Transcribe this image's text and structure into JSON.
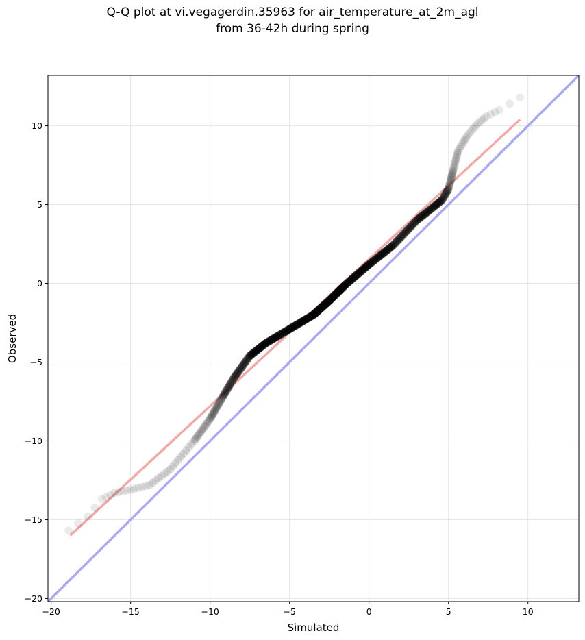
{
  "chart_data": {
    "type": "scatter",
    "title_lines": [
      "Q-Q plot at vi.vegagerdin.35963 for air_temperature_at_2m_agl",
      "from 36-42h during spring"
    ],
    "xlabel": "Simulated",
    "ylabel": "Observed",
    "xlim": [
      -20.2,
      13.2
    ],
    "ylim": [
      -20.2,
      13.2
    ],
    "xticks": [
      -20,
      -15,
      -10,
      -5,
      0,
      5,
      10
    ],
    "yticks": [
      -20,
      -15,
      -10,
      -5,
      0,
      5,
      10
    ],
    "xtick_labels": [
      "−20",
      "−15",
      "−10",
      "−5",
      "0",
      "5",
      "10"
    ],
    "ytick_labels": [
      "−20",
      "−15",
      "−10",
      "−5",
      "0",
      "5",
      "10"
    ],
    "grid": true,
    "identity_line": {
      "x": [
        -20.2,
        13.2
      ],
      "y": [
        -20.2,
        13.2
      ],
      "color": "#a9abf2"
    },
    "fit_line": {
      "x": [
        -18.8,
        9.5
      ],
      "y": [
        -16.0,
        10.4
      ],
      "color": "#f2a9a9"
    },
    "quantile_knots": {
      "x": [
        -18.9,
        -17.7,
        -16.8,
        -16.0,
        -15.0,
        -13.8,
        -12.5,
        -11.0,
        -10.0,
        -9.2,
        -8.5,
        -7.5,
        -6.5,
        -5.0,
        -3.5,
        -2.5,
        -1.5,
        0.0,
        1.5,
        3.0,
        4.0,
        4.6,
        5.0,
        5.3,
        5.6,
        6.2,
        6.8,
        7.4,
        8.2,
        9.5
      ],
      "y": [
        -15.7,
        -14.8,
        -13.7,
        -13.3,
        -13.1,
        -12.8,
        -11.8,
        -10.0,
        -8.6,
        -7.2,
        -6.0,
        -4.6,
        -3.8,
        -2.9,
        -2.0,
        -1.1,
        -0.1,
        1.2,
        2.4,
        4.0,
        4.8,
        5.3,
        6.0,
        7.2,
        8.4,
        9.4,
        10.1,
        10.6,
        11.0,
        11.8
      ]
    },
    "point_color": "#000000"
  }
}
